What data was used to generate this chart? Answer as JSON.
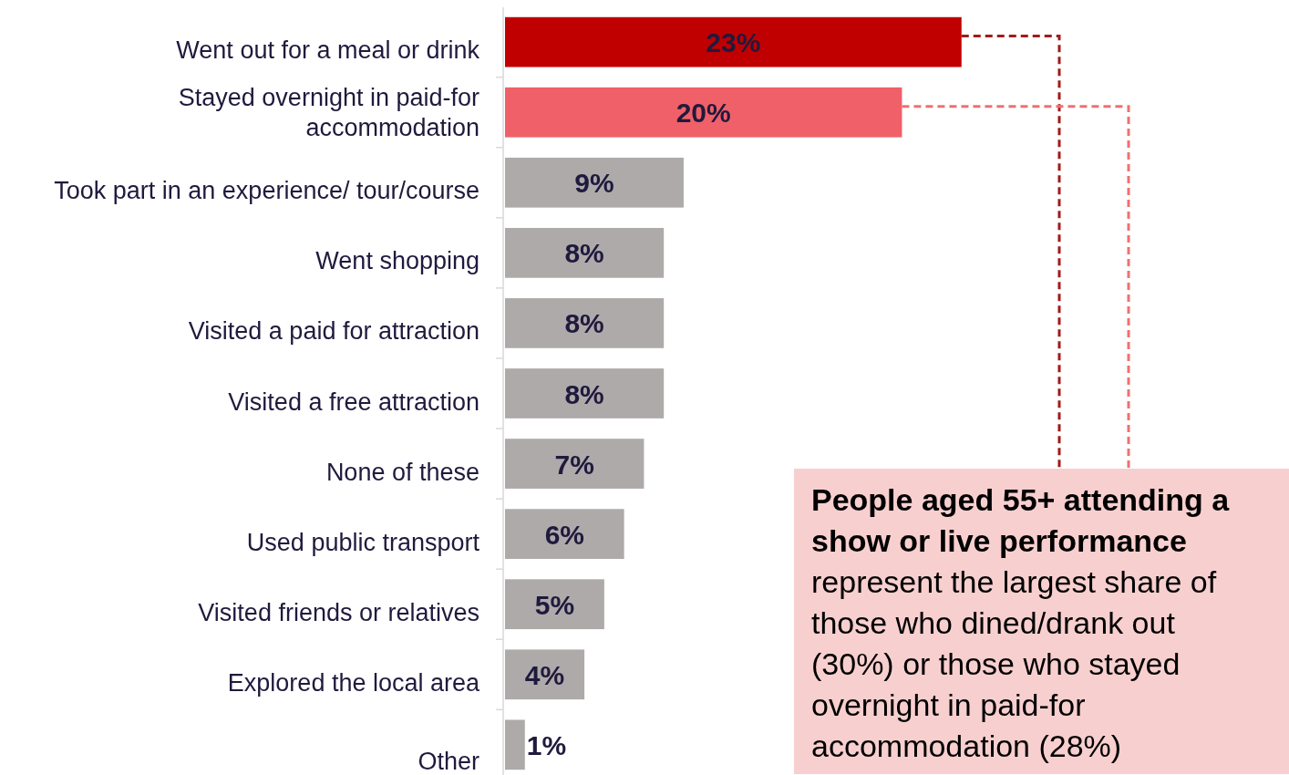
{
  "chart_data": {
    "type": "bar",
    "orientation": "horizontal",
    "categories": [
      "Went out for a meal or drink",
      "Stayed overnight in paid-for accommodation",
      "Took part in an experience/ tour/course",
      "Went shopping",
      "Visited a paid for attraction",
      "Visited a free attraction",
      "None of these",
      "Used public transport",
      "Visited friends or relatives",
      "Explored the local area",
      "Other"
    ],
    "values": [
      23,
      20,
      9,
      8,
      8,
      8,
      7,
      6,
      5,
      4,
      1
    ],
    "colors": [
      "#c00000",
      "#f06068",
      "#aeaaaa",
      "#aeaaaa",
      "#aeaaaa",
      "#aeaaaa",
      "#aeaaaa",
      "#aeaaaa",
      "#aeaaaa",
      "#aeaaaa",
      "#aeaaaa"
    ],
    "value_labels": [
      "23%",
      "20%",
      "9%",
      "8%",
      "8%",
      "8%",
      "7%",
      "6%",
      "5%",
      "4%",
      "1%"
    ],
    "xlim": [
      0,
      39.5
    ],
    "annotations": [
      "People aged 55+ attending a show or live performance",
      "represent the largest share of those who dined/drank out (30%) or those who stayed overnight in paid-for accommodation (28%)"
    ]
  }
}
